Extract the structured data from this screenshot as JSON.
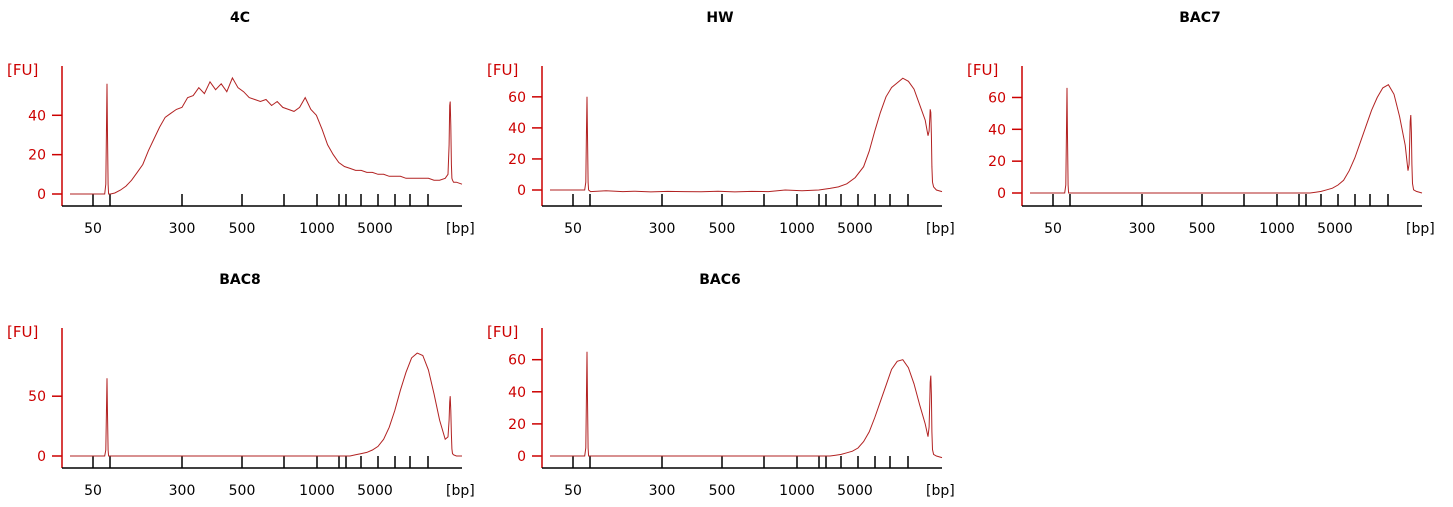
{
  "chart_data": [
    {
      "type": "line",
      "title": "4C",
      "ylabel": "[FU]",
      "xlabel": "[bp]",
      "y_ticks": [
        "0",
        "20",
        "40"
      ],
      "x_tick_labels": [
        "50",
        "300",
        "500",
        "1000",
        "5000"
      ],
      "ylim": [
        -2,
        62
      ],
      "colors": {
        "trace": "#b22222",
        "axis_y": "#cc0000",
        "axis_x": "#000000"
      },
      "x": [
        0,
        40,
        60,
        80,
        100,
        115,
        124,
        128,
        130,
        132,
        134,
        136,
        138,
        145,
        160,
        180,
        200,
        220,
        240,
        260,
        280,
        300,
        320,
        340,
        360,
        380,
        400,
        420,
        440,
        460,
        480,
        500,
        520,
        540,
        560,
        580,
        600,
        620,
        640,
        660,
        680,
        700,
        720,
        740,
        760,
        780,
        800,
        820,
        840,
        860,
        880,
        900,
        920,
        940,
        960,
        980,
        1000,
        1020,
        1040,
        1060,
        1080,
        1100,
        1120,
        1140,
        1160,
        1180,
        1200,
        1220,
        1240,
        1260,
        1280,
        1300,
        1320,
        1340,
        1350,
        1354,
        1356,
        1358,
        1360,
        1362,
        1364,
        1366,
        1370,
        1380,
        1400
      ],
      "y": [
        0,
        0,
        0,
        0,
        0,
        0,
        0,
        5,
        30,
        56,
        30,
        5,
        0,
        0,
        0.5,
        2,
        4,
        7,
        11,
        15,
        22,
        28,
        34,
        39,
        41,
        43,
        44,
        49,
        50,
        54,
        51,
        57,
        53,
        56,
        52,
        59,
        54,
        52,
        49,
        48,
        47,
        48,
        45,
        47,
        44,
        43,
        42,
        44,
        49,
        43,
        40,
        33,
        25,
        20,
        16,
        14,
        13,
        12,
        12,
        11,
        11,
        10,
        10,
        9,
        9,
        9,
        8,
        8,
        8,
        8,
        8,
        7,
        7,
        8,
        10,
        25,
        45,
        47,
        35,
        15,
        8,
        7,
        6,
        6,
        5
      ]
    },
    {
      "type": "line",
      "title": "HW",
      "ylabel": "[FU]",
      "xlabel": "[bp]",
      "y_ticks": [
        "0",
        "20",
        "40",
        "60"
      ],
      "x_tick_labels": [
        "50",
        "300",
        "500",
        "1000",
        "5000"
      ],
      "ylim": [
        -2,
        76
      ],
      "colors": {
        "trace": "#b22222",
        "axis_y": "#cc0000",
        "axis_x": "#000000"
      },
      "x": [
        0,
        40,
        60,
        80,
        100,
        115,
        124,
        128,
        130,
        132,
        134,
        136,
        138,
        145,
        200,
        260,
        300,
        360,
        420,
        480,
        540,
        600,
        660,
        720,
        780,
        840,
        900,
        960,
        1000,
        1030,
        1060,
        1090,
        1120,
        1140,
        1160,
        1180,
        1200,
        1220,
        1240,
        1260,
        1280,
        1300,
        1320,
        1340,
        1350,
        1354,
        1356,
        1358,
        1360,
        1362,
        1364,
        1366,
        1370,
        1380,
        1400
      ],
      "y": [
        0,
        0,
        0,
        0,
        0,
        0,
        0,
        5,
        35,
        60,
        35,
        5,
        0,
        -1,
        -0.5,
        -1,
        -0.8,
        -1.2,
        -0.9,
        -1,
        -1.1,
        -0.8,
        -1.2,
        -0.9,
        -1,
        0,
        -0.5,
        0,
        1,
        2,
        4,
        8,
        15,
        25,
        38,
        50,
        60,
        66,
        69,
        72,
        70,
        65,
        55,
        45,
        35,
        38,
        45,
        52,
        50,
        35,
        15,
        5,
        2,
        0,
        -1
      ]
    },
    {
      "type": "line",
      "title": "BAC7",
      "ylabel": "[FU]",
      "xlabel": "[bp]",
      "y_ticks": [
        "0",
        "20",
        "40",
        "60"
      ],
      "x_tick_labels": [
        "50",
        "300",
        "500",
        "1000",
        "5000"
      ],
      "ylim": [
        -2,
        76
      ],
      "colors": {
        "trace": "#b22222",
        "axis_y": "#cc0000",
        "axis_x": "#000000"
      },
      "x": [
        0,
        40,
        60,
        80,
        100,
        115,
        124,
        128,
        130,
        132,
        134,
        136,
        138,
        145,
        200,
        400,
        600,
        800,
        1000,
        1020,
        1040,
        1060,
        1080,
        1100,
        1120,
        1140,
        1160,
        1180,
        1200,
        1220,
        1240,
        1260,
        1280,
        1300,
        1320,
        1340,
        1350,
        1354,
        1356,
        1358,
        1360,
        1362,
        1364,
        1366,
        1370,
        1380,
        1400
      ],
      "y": [
        0,
        0,
        0,
        0,
        0,
        0,
        0,
        5,
        35,
        66,
        35,
        5,
        0,
        0,
        0,
        0,
        0,
        0,
        0,
        0.5,
        1,
        2,
        3,
        5,
        8,
        14,
        22,
        32,
        42,
        52,
        60,
        66,
        68,
        62,
        48,
        30,
        14,
        18,
        32,
        45,
        49,
        38,
        18,
        6,
        2,
        1,
        0
      ]
    },
    {
      "type": "line",
      "title": "BAC8",
      "ylabel": "[FU]",
      "xlabel": "[bp]",
      "y_ticks": [
        "0",
        "50"
      ],
      "x_tick_labels": [
        "50",
        "300",
        "500",
        "1000",
        "5000"
      ],
      "ylim": [
        -3,
        102
      ],
      "colors": {
        "trace": "#b22222",
        "axis_y": "#cc0000",
        "axis_x": "#000000"
      },
      "x": [
        0,
        40,
        60,
        80,
        100,
        115,
        124,
        128,
        130,
        132,
        134,
        136,
        138,
        145,
        200,
        400,
        600,
        800,
        1000,
        1020,
        1040,
        1060,
        1080,
        1100,
        1120,
        1140,
        1160,
        1180,
        1200,
        1220,
        1240,
        1260,
        1280,
        1300,
        1320,
        1340,
        1350,
        1354,
        1356,
        1358,
        1360,
        1362,
        1364,
        1366,
        1370,
        1380,
        1400
      ],
      "y": [
        0,
        0,
        0,
        0,
        0,
        0,
        0,
        5,
        35,
        65,
        35,
        5,
        0,
        0,
        0,
        0,
        0,
        0,
        0,
        1,
        2,
        3,
        5,
        8,
        14,
        24,
        38,
        55,
        70,
        82,
        86,
        84,
        72,
        52,
        30,
        14,
        16,
        30,
        45,
        50,
        38,
        18,
        6,
        2,
        1,
        0,
        0
      ]
    },
    {
      "type": "line",
      "title": "BAC6",
      "ylabel": "[FU]",
      "xlabel": "[bp]",
      "y_ticks": [
        "0",
        "20",
        "40",
        "60"
      ],
      "x_tick_labels": [
        "50",
        "300",
        "500",
        "1000",
        "5000"
      ],
      "ylim": [
        -2,
        76
      ],
      "colors": {
        "trace": "#b22222",
        "axis_y": "#cc0000",
        "axis_x": "#000000"
      },
      "x": [
        0,
        40,
        60,
        80,
        100,
        115,
        124,
        128,
        130,
        132,
        134,
        136,
        138,
        145,
        200,
        400,
        600,
        800,
        1000,
        1020,
        1040,
        1060,
        1080,
        1100,
        1120,
        1140,
        1160,
        1180,
        1200,
        1220,
        1240,
        1260,
        1280,
        1300,
        1320,
        1340,
        1350,
        1354,
        1356,
        1358,
        1360,
        1362,
        1364,
        1366,
        1370,
        1380,
        1400
      ],
      "y": [
        0,
        0,
        0,
        0,
        0,
        0,
        0,
        5,
        35,
        65,
        35,
        5,
        0,
        0,
        0,
        0,
        0,
        0,
        0,
        0.5,
        1,
        2,
        3,
        5,
        9,
        15,
        24,
        34,
        44,
        54,
        59,
        60,
        55,
        45,
        32,
        20,
        12,
        18,
        32,
        46,
        50,
        38,
        15,
        4,
        1,
        0,
        -1
      ]
    }
  ]
}
